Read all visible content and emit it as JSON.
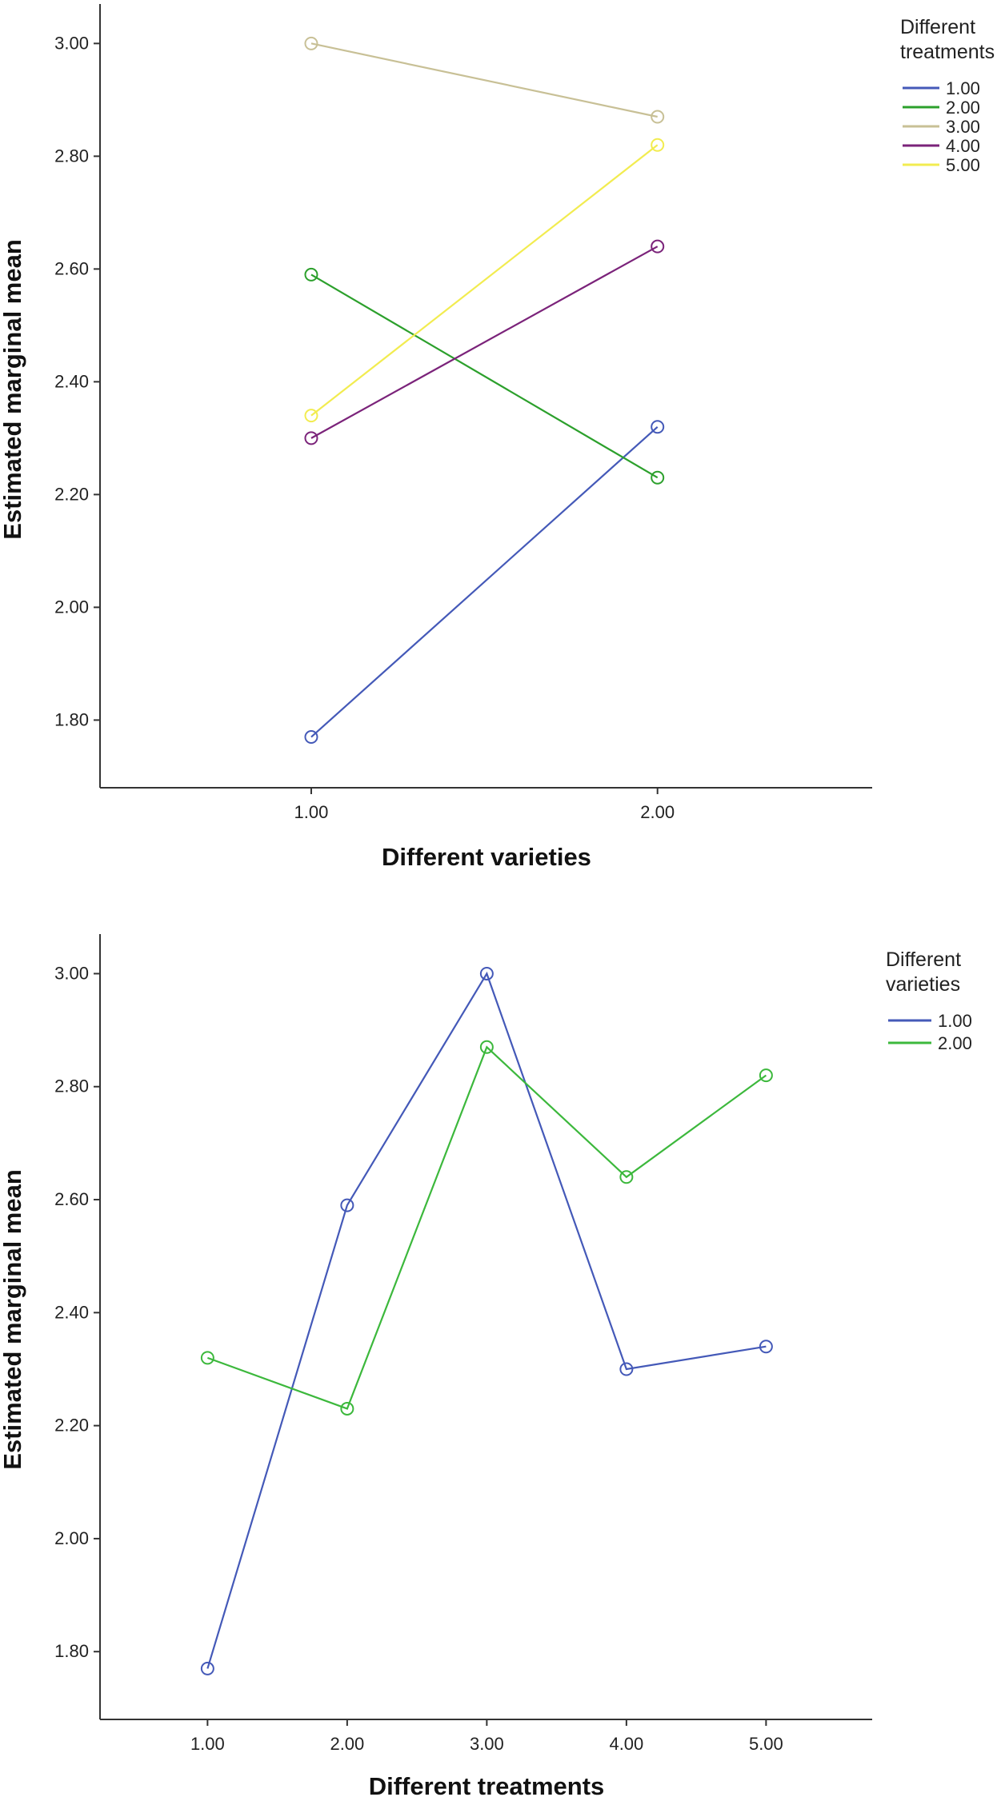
{
  "chart_data": [
    {
      "type": "line",
      "title": "",
      "xlabel": "Different varieties",
      "ylabel": "Estimated marginal mean",
      "x": [
        1.0,
        2.0
      ],
      "x_tick_labels": [
        "1.00",
        "2.00"
      ],
      "xlim": [
        0.39,
        2.62
      ],
      "ylim": [
        1.68,
        3.07
      ],
      "y_ticks": [
        1.8,
        2.0,
        2.2,
        2.4,
        2.6,
        2.8,
        3.0
      ],
      "y_tick_labels": [
        "1.80",
        "2.00",
        "2.20",
        "2.40",
        "2.60",
        "2.80",
        "3.00"
      ],
      "legend_title": "Different treatments",
      "legend_title_lines": [
        "Different",
        "treatments"
      ],
      "legend_position": "top-right",
      "grid": false,
      "marker": "open-circle",
      "series": [
        {
          "name": "1.00",
          "color": "#4459b8",
          "values": [
            1.77,
            2.32
          ]
        },
        {
          "name": "2.00",
          "color": "#2ca02c",
          "values": [
            2.59,
            2.23
          ]
        },
        {
          "name": "3.00",
          "color": "#c8c096",
          "values": [
            3.0,
            2.87
          ]
        },
        {
          "name": "4.00",
          "color": "#7b237a",
          "values": [
            2.3,
            2.64
          ]
        },
        {
          "name": "5.00",
          "color": "#f2ec50",
          "values": [
            2.34,
            2.82
          ]
        }
      ]
    },
    {
      "type": "line",
      "title": "",
      "xlabel": "Different treatments",
      "ylabel": "Estimated marginal mean",
      "x": [
        1.0,
        2.0,
        3.0,
        4.0,
        5.0
      ],
      "x_tick_labels": [
        "1.00",
        "2.00",
        "3.00",
        "4.00",
        "5.00"
      ],
      "xlim": [
        0.23,
        5.76
      ],
      "ylim": [
        1.68,
        3.07
      ],
      "y_ticks": [
        1.8,
        2.0,
        2.2,
        2.4,
        2.6,
        2.8,
        3.0
      ],
      "y_tick_labels": [
        "1.80",
        "2.00",
        "2.20",
        "2.40",
        "2.60",
        "2.80",
        "3.00"
      ],
      "legend_title": "Different varieties",
      "legend_title_lines": [
        "Different",
        "varieties"
      ],
      "legend_position": "top-right",
      "grid": false,
      "marker": "open-circle",
      "series": [
        {
          "name": "1.00",
          "color": "#4459b8",
          "values": [
            1.77,
            2.59,
            3.0,
            2.3,
            2.34
          ]
        },
        {
          "name": "2.00",
          "color": "#3cb83c",
          "values": [
            2.32,
            2.23,
            2.87,
            2.64,
            2.82
          ]
        }
      ]
    }
  ]
}
